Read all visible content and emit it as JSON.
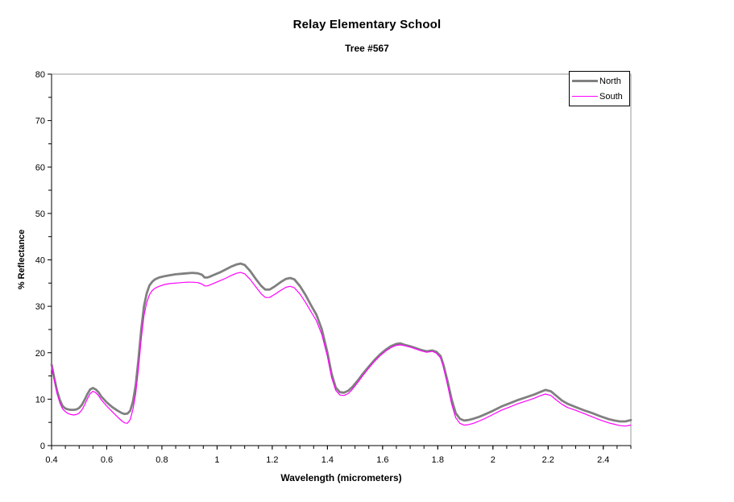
{
  "title": "Relay Elementary School",
  "subtitle": "Tree #567",
  "colors": {
    "north_line": "#808080",
    "south_line": "#FF00FF",
    "plot_border": "#999999",
    "axis": "#000000",
    "background": "#FFFFFF",
    "text": "#000000"
  },
  "legend": {
    "north_label": "North",
    "south_label": "South"
  },
  "chart_data": {
    "type": "line",
    "title": "Relay Elementary School",
    "subtitle": "Tree #567",
    "xlabel": "Wavelength (micrometers)",
    "ylabel": "% Reflectance",
    "xlim": [
      0.4,
      2.5
    ],
    "ylim": [
      0,
      80
    ],
    "grid": false,
    "legend_position": "top-right",
    "x_major_ticks": [
      0.4,
      0.6,
      0.8,
      1.0,
      1.2,
      1.4,
      1.6,
      1.8,
      2.0,
      2.2,
      2.4
    ],
    "x_tick_labels": [
      "0.4",
      "0.6",
      "0.8",
      "1",
      "1.2",
      "1.4",
      "1.6",
      "1.8",
      "2",
      "2.2",
      "2.4"
    ],
    "x_minor_tick_step": 0.05,
    "y_major_ticks": [
      0,
      10,
      20,
      30,
      40,
      50,
      60,
      70,
      80
    ],
    "y_tick_labels": [
      "0",
      "10",
      "20",
      "30",
      "40",
      "50",
      "60",
      "70",
      "80"
    ],
    "y_minor_tick_step": 5,
    "series": [
      {
        "name": "North",
        "color": "#808080",
        "line_width": 2.8,
        "x": [
          0.4,
          0.41,
          0.42,
          0.43,
          0.44,
          0.45,
          0.46,
          0.47,
          0.48,
          0.49,
          0.5,
          0.51,
          0.52,
          0.53,
          0.54,
          0.55,
          0.56,
          0.57,
          0.58,
          0.6,
          0.62,
          0.64,
          0.655,
          0.665,
          0.675,
          0.685,
          0.695,
          0.705,
          0.715,
          0.725,
          0.735,
          0.745,
          0.755,
          0.765,
          0.775,
          0.79,
          0.81,
          0.83,
          0.85,
          0.87,
          0.89,
          0.91,
          0.93,
          0.945,
          0.955,
          0.965,
          0.975,
          0.99,
          1.01,
          1.03,
          1.05,
          1.07,
          1.085,
          1.1,
          1.12,
          1.14,
          1.16,
          1.175,
          1.19,
          1.21,
          1.23,
          1.25,
          1.265,
          1.28,
          1.3,
          1.32,
          1.34,
          1.36,
          1.38,
          1.4,
          1.415,
          1.43,
          1.445,
          1.46,
          1.475,
          1.49,
          1.51,
          1.53,
          1.55,
          1.57,
          1.59,
          1.61,
          1.63,
          1.65,
          1.665,
          1.68,
          1.7,
          1.72,
          1.74,
          1.76,
          1.78,
          1.795,
          1.81,
          1.82,
          1.835,
          1.85,
          1.865,
          1.88,
          1.895,
          1.91,
          1.93,
          1.95,
          1.97,
          2.0,
          2.03,
          2.06,
          2.09,
          2.12,
          2.15,
          2.17,
          2.19,
          2.21,
          2.23,
          2.25,
          2.27,
          2.3,
          2.33,
          2.36,
          2.39,
          2.42,
          2.44,
          2.46,
          2.48,
          2.5
        ],
        "y": [
          17.5,
          14.5,
          11.8,
          9.8,
          8.5,
          8.0,
          7.8,
          7.7,
          7.7,
          7.8,
          8.1,
          8.8,
          9.9,
          11.1,
          12.1,
          12.4,
          12.1,
          11.5,
          10.6,
          9.3,
          8.3,
          7.5,
          7.0,
          6.8,
          6.9,
          7.5,
          9.5,
          13.0,
          18.5,
          25.0,
          30.0,
          32.8,
          34.5,
          35.3,
          35.8,
          36.2,
          36.5,
          36.7,
          36.9,
          37.0,
          37.1,
          37.2,
          37.1,
          36.8,
          36.2,
          36.2,
          36.4,
          36.8,
          37.3,
          37.9,
          38.5,
          39.0,
          39.2,
          38.9,
          37.6,
          35.9,
          34.4,
          33.6,
          33.6,
          34.3,
          35.2,
          35.9,
          36.1,
          35.8,
          34.4,
          32.5,
          30.3,
          28.2,
          25.0,
          20.0,
          15.5,
          12.5,
          11.5,
          11.4,
          11.8,
          12.6,
          14.0,
          15.6,
          17.0,
          18.4,
          19.6,
          20.6,
          21.4,
          21.9,
          22.0,
          21.7,
          21.4,
          21.0,
          20.6,
          20.3,
          20.5,
          20.2,
          19.3,
          17.5,
          14.0,
          10.0,
          7.0,
          5.8,
          5.4,
          5.5,
          5.8,
          6.2,
          6.7,
          7.5,
          8.4,
          9.1,
          9.8,
          10.4,
          11.0,
          11.5,
          12.0,
          11.7,
          10.7,
          9.7,
          9.0,
          8.3,
          7.6,
          7.0,
          6.3,
          5.7,
          5.4,
          5.2,
          5.2,
          5.5
        ]
      },
      {
        "name": "South",
        "color": "#FF00FF",
        "line_width": 1.2,
        "x": [
          0.4,
          0.41,
          0.42,
          0.43,
          0.44,
          0.45,
          0.46,
          0.47,
          0.48,
          0.49,
          0.5,
          0.51,
          0.52,
          0.53,
          0.54,
          0.55,
          0.56,
          0.57,
          0.58,
          0.6,
          0.62,
          0.64,
          0.655,
          0.665,
          0.675,
          0.685,
          0.695,
          0.705,
          0.715,
          0.725,
          0.735,
          0.745,
          0.755,
          0.765,
          0.775,
          0.79,
          0.81,
          0.83,
          0.85,
          0.87,
          0.89,
          0.91,
          0.93,
          0.945,
          0.955,
          0.965,
          0.975,
          0.99,
          1.01,
          1.03,
          1.05,
          1.07,
          1.085,
          1.1,
          1.12,
          1.14,
          1.16,
          1.175,
          1.19,
          1.21,
          1.23,
          1.25,
          1.265,
          1.28,
          1.3,
          1.32,
          1.34,
          1.36,
          1.38,
          1.4,
          1.415,
          1.43,
          1.445,
          1.46,
          1.475,
          1.49,
          1.51,
          1.53,
          1.55,
          1.57,
          1.59,
          1.61,
          1.63,
          1.65,
          1.665,
          1.68,
          1.7,
          1.72,
          1.74,
          1.76,
          1.78,
          1.795,
          1.81,
          1.82,
          1.835,
          1.85,
          1.865,
          1.88,
          1.895,
          1.91,
          1.93,
          1.95,
          1.97,
          2.0,
          2.03,
          2.06,
          2.09,
          2.12,
          2.15,
          2.17,
          2.19,
          2.21,
          2.23,
          2.25,
          2.27,
          2.3,
          2.33,
          2.36,
          2.39,
          2.42,
          2.44,
          2.46,
          2.48,
          2.5
        ],
        "y": [
          17.3,
          14.1,
          11.2,
          9.2,
          7.9,
          7.3,
          6.9,
          6.7,
          6.6,
          6.7,
          7.0,
          7.7,
          8.8,
          10.1,
          11.2,
          11.7,
          11.4,
          10.8,
          9.9,
          8.5,
          7.3,
          6.1,
          5.3,
          4.9,
          4.8,
          5.6,
          7.8,
          11.2,
          16.5,
          23.0,
          28.0,
          30.8,
          32.5,
          33.4,
          33.9,
          34.3,
          34.7,
          34.9,
          35.0,
          35.1,
          35.2,
          35.2,
          35.1,
          34.8,
          34.4,
          34.4,
          34.6,
          35.0,
          35.5,
          36.0,
          36.6,
          37.1,
          37.3,
          37.0,
          35.8,
          34.2,
          32.7,
          31.9,
          31.9,
          32.6,
          33.4,
          34.1,
          34.3,
          34.0,
          32.7,
          30.9,
          28.9,
          26.9,
          23.9,
          19.2,
          14.7,
          11.9,
          10.9,
          10.8,
          11.2,
          12.1,
          13.6,
          15.2,
          16.7,
          18.1,
          19.3,
          20.3,
          21.1,
          21.6,
          21.7,
          21.5,
          21.2,
          20.8,
          20.4,
          20.1,
          20.3,
          19.9,
          18.9,
          17.0,
          13.2,
          9.0,
          6.0,
          4.8,
          4.4,
          4.5,
          4.8,
          5.3,
          5.8,
          6.7,
          7.6,
          8.3,
          9.0,
          9.6,
          10.2,
          10.7,
          11.1,
          10.8,
          9.8,
          8.9,
          8.2,
          7.6,
          6.9,
          6.2,
          5.5,
          4.9,
          4.6,
          4.3,
          4.2,
          4.4
        ]
      }
    ]
  }
}
